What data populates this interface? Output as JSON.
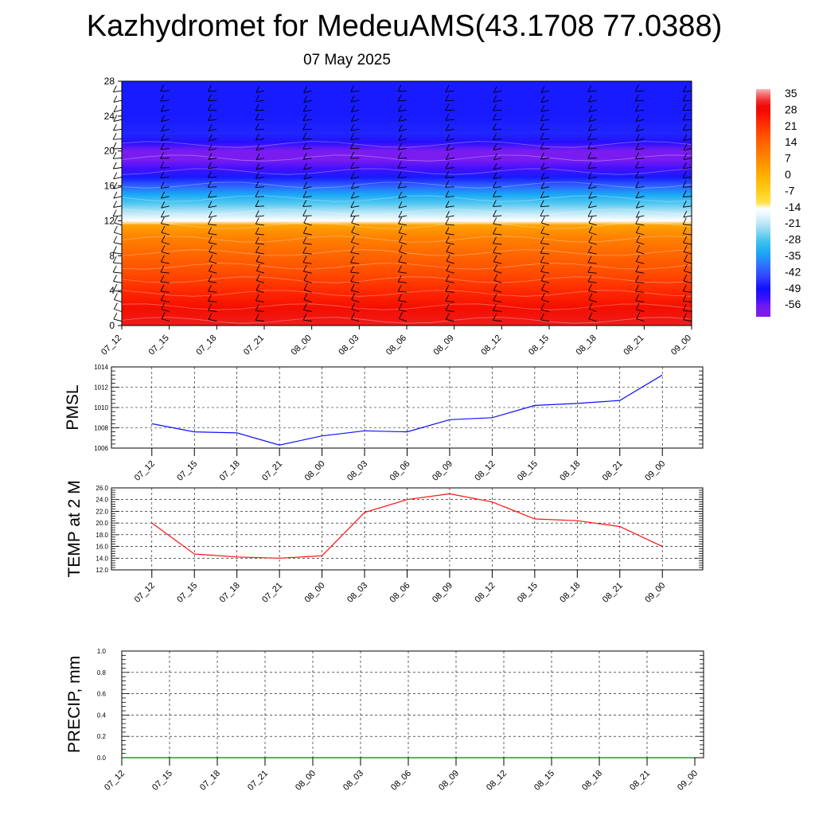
{
  "title": "Kazhydromet for MedeuAMS(43.1708 77.0388)",
  "subtitle": "07 May 2025",
  "chart_data": [
    {
      "type": "heatmap",
      "panel": "cross-section",
      "ylim": [
        0,
        28
      ],
      "y_ticks": [
        "0",
        "4",
        "8",
        "12",
        "16",
        "20",
        "24",
        "28"
      ],
      "x_ticks": [
        "07_12",
        "07_15",
        "07_18",
        "07_21",
        "08_00",
        "08_03",
        "08_06",
        "08_09",
        "08_12",
        "08_15",
        "08_18",
        "08_21",
        "09_00"
      ],
      "colorbar": {
        "labels": [
          "35",
          "28",
          "21",
          "14",
          "7",
          "0",
          "-7",
          "-14",
          "-21",
          "-28",
          "-35",
          "-42",
          "-49",
          "-56"
        ],
        "range": [
          -60,
          36
        ]
      },
      "temperature_profile": {
        "levels": [
          0,
          2,
          4,
          6,
          8,
          10,
          11.5,
          12,
          13,
          14,
          15,
          16,
          17,
          18,
          19,
          20,
          21,
          22,
          24,
          28
        ],
        "values": [
          30,
          26,
          22,
          17,
          13,
          8,
          2,
          -14,
          -21,
          -27,
          -33,
          -40,
          -47,
          -53,
          -57,
          -56,
          -50,
          -46,
          -47,
          -47
        ]
      },
      "wind_barbs": true
    },
    {
      "type": "line",
      "panel": "pmsl",
      "ylabel": "PMSL",
      "ylim": [
        1006,
        1014
      ],
      "y_ticks": [
        "1006",
        "1008",
        "1010",
        "1012",
        "1014"
      ],
      "categories": [
        "07_12",
        "07_15",
        "07_18",
        "07_21",
        "08_00",
        "08_03",
        "08_06",
        "08_09",
        "08_12",
        "08_15",
        "08_18",
        "08_21",
        "09_00"
      ],
      "series": [
        {
          "values": [
            1008.4,
            1007.6,
            1007.5,
            1006.3,
            1007.2,
            1007.7,
            1007.6,
            1008.8,
            1009.0,
            1010.2,
            1010.4,
            1010.7,
            1013.2
          ]
        }
      ],
      "color": "#1010ff",
      "grid": true
    },
    {
      "type": "line",
      "panel": "temp2m",
      "ylabel": "TEMP at 2 M",
      "ylim": [
        12,
        26
      ],
      "y_ticks": [
        "12.0",
        "14.0",
        "16.0",
        "18.0",
        "20.0",
        "22.0",
        "24.0",
        "26.0"
      ],
      "categories": [
        "07_12",
        "07_15",
        "07_18",
        "07_21",
        "08_00",
        "08_03",
        "08_06",
        "08_09",
        "08_12",
        "08_15",
        "08_18",
        "08_21",
        "09_00"
      ],
      "series": [
        {
          "values": [
            20.0,
            14.7,
            14.2,
            14.0,
            14.4,
            21.8,
            24.0,
            25.0,
            23.6,
            20.7,
            20.4,
            19.4,
            16.0
          ]
        }
      ],
      "color": "#ff1010",
      "grid": true
    },
    {
      "type": "line",
      "panel": "precip",
      "ylabel": "PRECIP, mm",
      "ylim": [
        0,
        1
      ],
      "y_ticks": [
        "0.0",
        "0.2",
        "0.4",
        "0.6",
        "0.8",
        "1.0"
      ],
      "categories": [
        "07_12",
        "07_15",
        "07_18",
        "07_21",
        "08_00",
        "08_03",
        "08_06",
        "08_09",
        "08_12",
        "08_15",
        "08_18",
        "08_21",
        "09_00"
      ],
      "series": [
        {
          "values": [
            0,
            0,
            0,
            0,
            0,
            0,
            0,
            0,
            0,
            0,
            0,
            0,
            0
          ]
        }
      ],
      "color": "#008000",
      "grid": true
    }
  ]
}
